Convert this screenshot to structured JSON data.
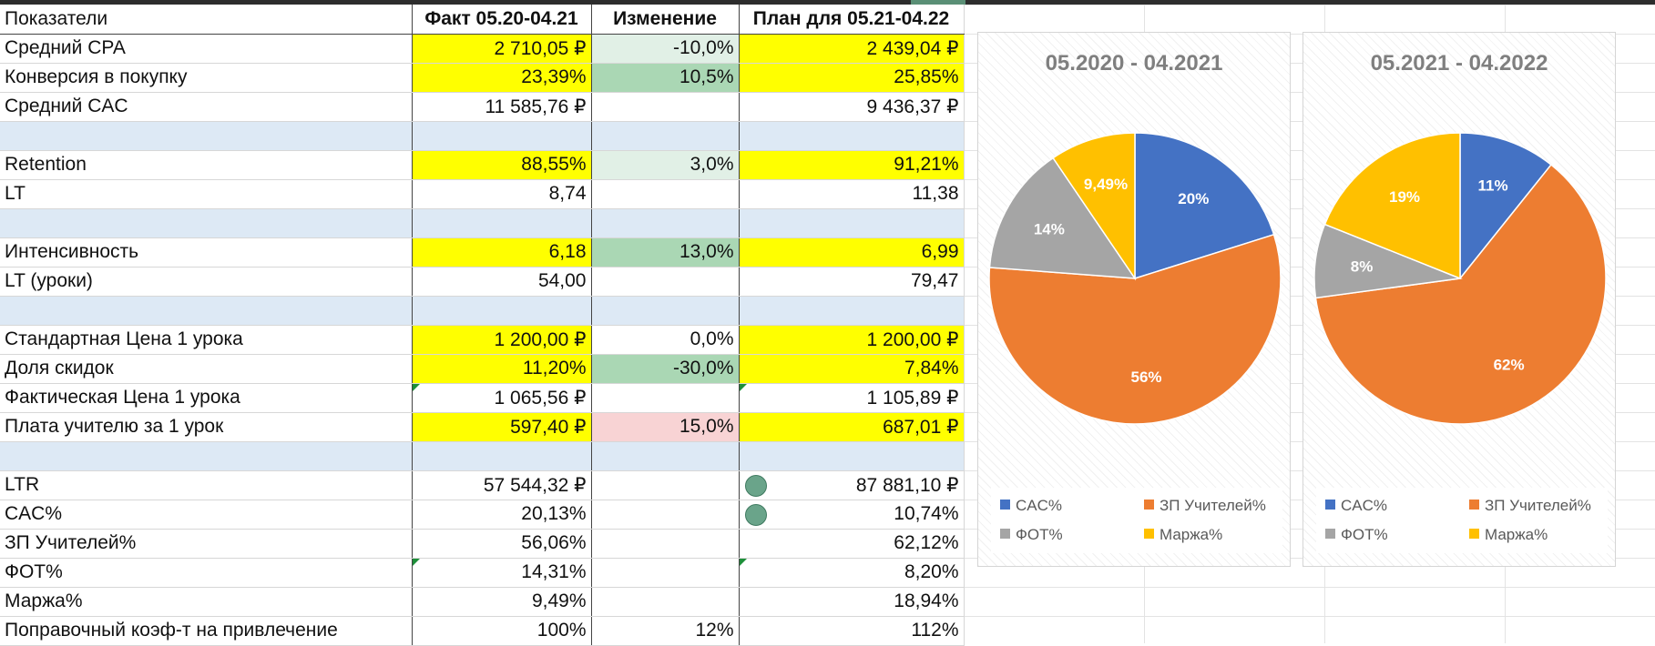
{
  "table": {
    "headers": [
      "Показатели",
      "Факт 05.20-04.21",
      "Изменение",
      "План для 05.21-04.22"
    ],
    "rows": [
      {
        "label": "Средний CPA",
        "fact": "2 710,05 ₽",
        "change": "-10,0%",
        "plan": "2 439,04 ₽",
        "fact_bg": "y",
        "change_bg": "g1",
        "plan_bg": "y"
      },
      {
        "label": "Конверсия в покупку",
        "fact": "23,39%",
        "change": "10,5%",
        "plan": "25,85%",
        "fact_bg": "y",
        "change_bg": "g2",
        "plan_bg": "y"
      },
      {
        "label": "Средний CAC",
        "fact": "11 585,76 ₽",
        "change": "",
        "plan": "9 436,37 ₽"
      },
      {
        "spacer": true
      },
      {
        "label": "Retention",
        "fact": "88,55%",
        "change": "3,0%",
        "plan": "91,21%",
        "fact_bg": "y",
        "change_bg": "g1",
        "plan_bg": "y"
      },
      {
        "label": "LT",
        "fact": "8,74",
        "change": "",
        "plan": "11,38"
      },
      {
        "spacer": true
      },
      {
        "label": "Интенсивность",
        "fact": "6,18",
        "change": "13,0%",
        "plan": "6,99",
        "fact_bg": "y",
        "change_bg": "g2",
        "plan_bg": "y"
      },
      {
        "label": "LT (уроки)",
        "fact": "54,00",
        "change": "",
        "plan": "79,47"
      },
      {
        "spacer": true
      },
      {
        "label": "Стандартная Цена 1 урока",
        "fact": "1 200,00 ₽",
        "change": "0,0%",
        "plan": "1 200,00 ₽",
        "fact_bg": "y",
        "plan_bg": "y"
      },
      {
        "label": "Доля скидок",
        "fact": "11,20%",
        "change": "-30,0%",
        "plan": "7,84%",
        "fact_bg": "y",
        "change_bg": "g2",
        "plan_bg": "y"
      },
      {
        "label": "Фактическая Цена 1 урока",
        "fact": "1 065,56 ₽",
        "change": "",
        "plan": "1 105,89 ₽",
        "fact_tri": true,
        "plan_tri": true
      },
      {
        "label": "Плата учителю за 1 урок",
        "fact": "597,40 ₽",
        "change": "15,0%",
        "plan": "687,01 ₽",
        "fact_bg": "y",
        "change_bg": "r1",
        "plan_bg": "y"
      },
      {
        "spacer": true
      },
      {
        "label": "LTR",
        "fact": "57 544,32 ₽",
        "change": "",
        "plan": "87 881,10 ₽",
        "plan_dot": true
      },
      {
        "label": "CAC%",
        "fact": "20,13%",
        "change": "",
        "plan": "10,74%",
        "plan_dot": true
      },
      {
        "label": "ЗП Учителей%",
        "fact": "56,06%",
        "change": "",
        "plan": "62,12%"
      },
      {
        "label": "ФОТ%",
        "fact": "14,31%",
        "change": "",
        "plan": "8,20%",
        "fact_tri": true,
        "plan_tri": true
      },
      {
        "label": "Маржа%",
        "fact": "9,49%",
        "change": "",
        "plan": "18,94%"
      },
      {
        "label": "Поправочный коэф-т на привлечение",
        "fact": "100%",
        "change": "12%",
        "plan": "112%"
      }
    ]
  },
  "chart_data": [
    {
      "type": "pie",
      "title": "05.2020 - 04.2021",
      "categories": [
        "CAC%",
        "ЗП Учителей%",
        "ФОТ%",
        "Маржа%"
      ],
      "values": [
        20.13,
        56.06,
        14.31,
        9.49
      ],
      "labels": [
        "20%",
        "56%",
        "14%",
        "9,49%"
      ],
      "colors": [
        "#4472c4",
        "#ed7d31",
        "#a5a5a5",
        "#ffc000"
      ],
      "legend": "bottom"
    },
    {
      "type": "pie",
      "title": "05.2021 - 04.2022",
      "categories": [
        "CAC%",
        "ЗП Учителей%",
        "ФОТ%",
        "Маржа%"
      ],
      "values": [
        10.74,
        62.12,
        8.2,
        18.94
      ],
      "labels": [
        "11%",
        "62%",
        "8%",
        "19%"
      ],
      "colors": [
        "#4472c4",
        "#ed7d31",
        "#a5a5a5",
        "#ffc000"
      ],
      "legend": "bottom"
    }
  ]
}
